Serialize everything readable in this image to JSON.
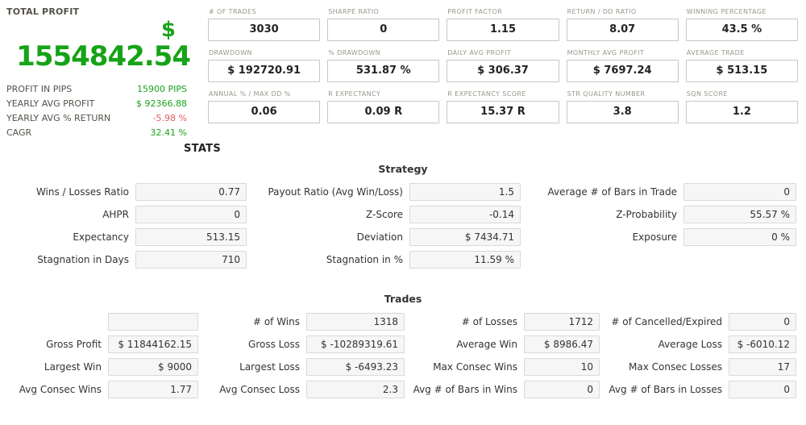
{
  "colors": {
    "positive_green": "#1ba31b",
    "negative_red": "#dd5f5f",
    "total_green": "#17a317"
  },
  "summary": {
    "title": "TOTAL PROFIT",
    "currency_symbol": "$",
    "total_profit": "1554842.54",
    "rows": [
      {
        "label": "PROFIT IN PIPS",
        "value": "15900 PIPS",
        "tone": "positive"
      },
      {
        "label": "YEARLY AVG PROFIT",
        "value": "$ 92366.88",
        "tone": "positive"
      },
      {
        "label": "YEARLY AVG % RETURN",
        "value": "-5.98 %",
        "tone": "negative"
      },
      {
        "label": "CAGR",
        "value": "32.41 %",
        "tone": "positive"
      }
    ]
  },
  "metrics": {
    "items": [
      {
        "label": "# OF TRADES",
        "value": "3030"
      },
      {
        "label": "SHARPE RATIO",
        "value": "0"
      },
      {
        "label": "PROFIT FACTOR",
        "value": "1.15"
      },
      {
        "label": "RETURN / DD RATIO",
        "value": "8.07"
      },
      {
        "label": "WINNING PERCENTAGE",
        "value": "43.5 %"
      },
      {
        "label": "DRAWDOWN",
        "value": "$ 192720.91"
      },
      {
        "label": "% DRAWDOWN",
        "value": "531.87 %"
      },
      {
        "label": "DAILY AVG PROFIT",
        "value": "$ 306.37"
      },
      {
        "label": "MONTHLY AVG PROFIT",
        "value": "$ 7697.24"
      },
      {
        "label": "AVERAGE TRADE",
        "value": "$ 513.15"
      },
      {
        "label": "ANNUAL % / MAX DD %",
        "value": "0.06"
      },
      {
        "label": "R EXPECTANCY",
        "value": "0.09 R"
      },
      {
        "label": "R EXPECTANCY SCORE",
        "value": "15.37 R"
      },
      {
        "label": "STR QUALITY NUMBER",
        "value": "3.8"
      },
      {
        "label": "SQN SCORE",
        "value": "1.2"
      }
    ]
  },
  "stats_heading": "STATS",
  "sections": {
    "strategy": {
      "title": "Strategy",
      "rows": [
        {
          "cells": [
            {
              "label": "Wins / Losses Ratio",
              "value": "0.77"
            },
            {
              "label": "Payout Ratio (Avg Win/Loss)",
              "value": "1.5"
            },
            {
              "label": "Average # of Bars in Trade",
              "value": "0"
            }
          ]
        },
        {
          "cells": [
            {
              "label": "AHPR",
              "value": "0"
            },
            {
              "label": "Z-Score",
              "value": "-0.14"
            },
            {
              "label": "Z-Probability",
              "value": "55.57 %"
            }
          ]
        },
        {
          "cells": [
            {
              "label": "Expectancy",
              "value": "513.15"
            },
            {
              "label": "Deviation",
              "value": "$ 7434.71"
            },
            {
              "label": "Exposure",
              "value": "0 %"
            }
          ]
        },
        {
          "cells": [
            {
              "label": "Stagnation in Days",
              "value": "710"
            },
            {
              "label": "Stagnation in %",
              "value": "11.59 %"
            }
          ]
        }
      ]
    },
    "trades": {
      "title": "Trades",
      "rows": [
        {
          "cells": [
            {
              "label": "",
              "value": ""
            },
            {
              "label": "# of Wins",
              "value": "1318"
            },
            {
              "label": "# of Losses",
              "value": "1712"
            },
            {
              "label": "# of Cancelled/Expired",
              "value": "0"
            }
          ]
        },
        {
          "cells": [
            {
              "label": "Gross Profit",
              "value": "$ 11844162.15"
            },
            {
              "label": "Gross Loss",
              "value": "$ -10289319.61"
            },
            {
              "label": "Average Win",
              "value": "$ 8986.47"
            },
            {
              "label": "Average Loss",
              "value": "$ -6010.12"
            }
          ]
        },
        {
          "cells": [
            {
              "label": "Largest Win",
              "value": "$ 9000"
            },
            {
              "label": "Largest Loss",
              "value": "$ -6493.23"
            },
            {
              "label": "Max Consec Wins",
              "value": "10"
            },
            {
              "label": "Max Consec Losses",
              "value": "17"
            }
          ]
        },
        {
          "cells": [
            {
              "label": "Avg Consec Wins",
              "value": "1.77"
            },
            {
              "label": "Avg Consec Loss",
              "value": "2.3"
            },
            {
              "label": "Avg # of Bars in Wins",
              "value": "0"
            },
            {
              "label": "Avg # of Bars in Losses",
              "value": "0"
            }
          ]
        }
      ]
    }
  }
}
